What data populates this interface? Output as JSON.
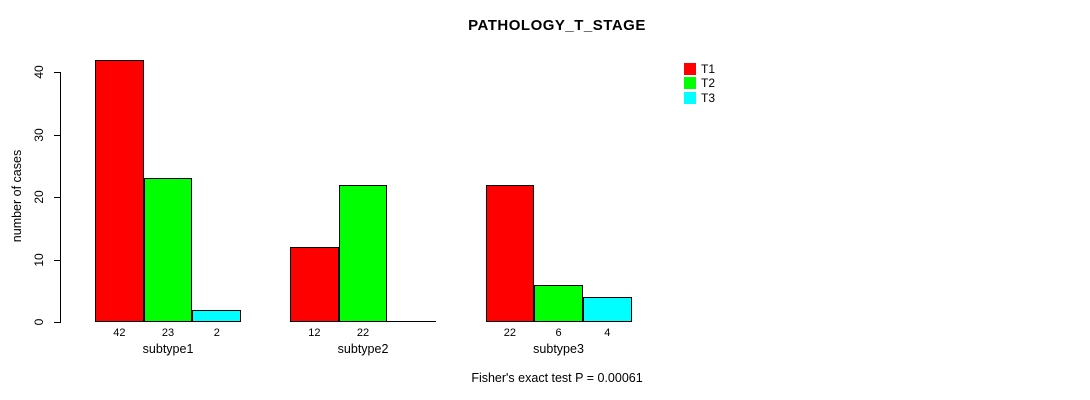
{
  "chart_data": {
    "type": "bar",
    "title": "PATHOLOGY_T_STAGE",
    "ylabel": "number of cases",
    "xlabel": "",
    "categories": [
      "subtype1",
      "subtype2",
      "subtype3"
    ],
    "series": [
      {
        "name": "T1",
        "color": "#ff0000",
        "values": [
          42,
          12,
          22
        ]
      },
      {
        "name": "T2",
        "color": "#00ff00",
        "values": [
          23,
          22,
          6
        ]
      },
      {
        "name": "T3",
        "color": "#00ffff",
        "values": [
          2,
          0,
          4
        ]
      }
    ],
    "bar_value_labels": [
      [
        "42",
        "23",
        "2"
      ],
      [
        "12",
        "22",
        ""
      ],
      [
        "22",
        "6",
        "4"
      ]
    ],
    "y_ticks": [
      0,
      10,
      20,
      30,
      40
    ],
    "ylim": [
      0,
      42
    ],
    "grid": false,
    "legend_position": "top-right",
    "legend_entries": [
      "T1",
      "T2",
      "T3"
    ],
    "annotation": "Fisher's exact test P = 0.00061",
    "bar_border_color": "#000000",
    "axis_color": "#000000"
  }
}
